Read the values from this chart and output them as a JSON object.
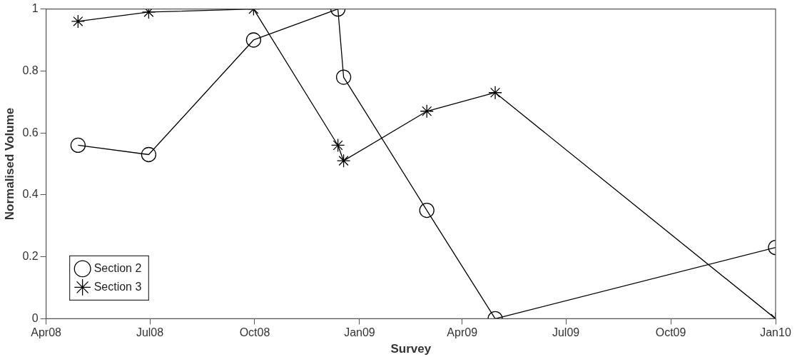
{
  "chart_data": {
    "type": "line",
    "xlabel": "Survey",
    "ylabel": "Normalised Volume",
    "xlim": [
      "2008-04",
      "2010-01"
    ],
    "xticks": [
      {
        "value": "2008-04",
        "label": "Apr08"
      },
      {
        "value": "2008-07",
        "label": "Jul08"
      },
      {
        "value": "2008-10",
        "label": "Oct08"
      },
      {
        "value": "2009-01",
        "label": "Jan09"
      },
      {
        "value": "2009-04",
        "label": "Apr09"
      },
      {
        "value": "2009-07",
        "label": "Jul09"
      },
      {
        "value": "2009-10",
        "label": "Oct09"
      },
      {
        "value": "2010-01",
        "label": "Jan10"
      }
    ],
    "ylim": [
      0,
      1
    ],
    "yticks": [
      0,
      0.2,
      0.4,
      0.6,
      0.8,
      1
    ],
    "grid": false,
    "legend": "bottom left",
    "line_style": "solid",
    "series": [
      {
        "name": "Section 2",
        "color": "#000000",
        "marker": "circle",
        "x": [
          "2008-04-29",
          "2008-06-30",
          "2008-09-30",
          "2008-12-13",
          "2008-12-18",
          "2009-03-01",
          "2009-04-30",
          "2010-01-01"
        ],
        "values": [
          0.56,
          0.53,
          0.9,
          1.0,
          0.78,
          0.35,
          0,
          0.23
        ]
      },
      {
        "name": "Section 3",
        "color": "#000000",
        "marker": "cross",
        "x": [
          "2008-04-29",
          "2008-06-30",
          "2008-09-30",
          "2008-12-13",
          "2008-12-18",
          "2009-03-01",
          "2009-04-30",
          "2010-01-01"
        ],
        "values": [
          0.96,
          0.99,
          1.0,
          0.56,
          0.51,
          0.67,
          0.73,
          0
        ]
      }
    ]
  }
}
